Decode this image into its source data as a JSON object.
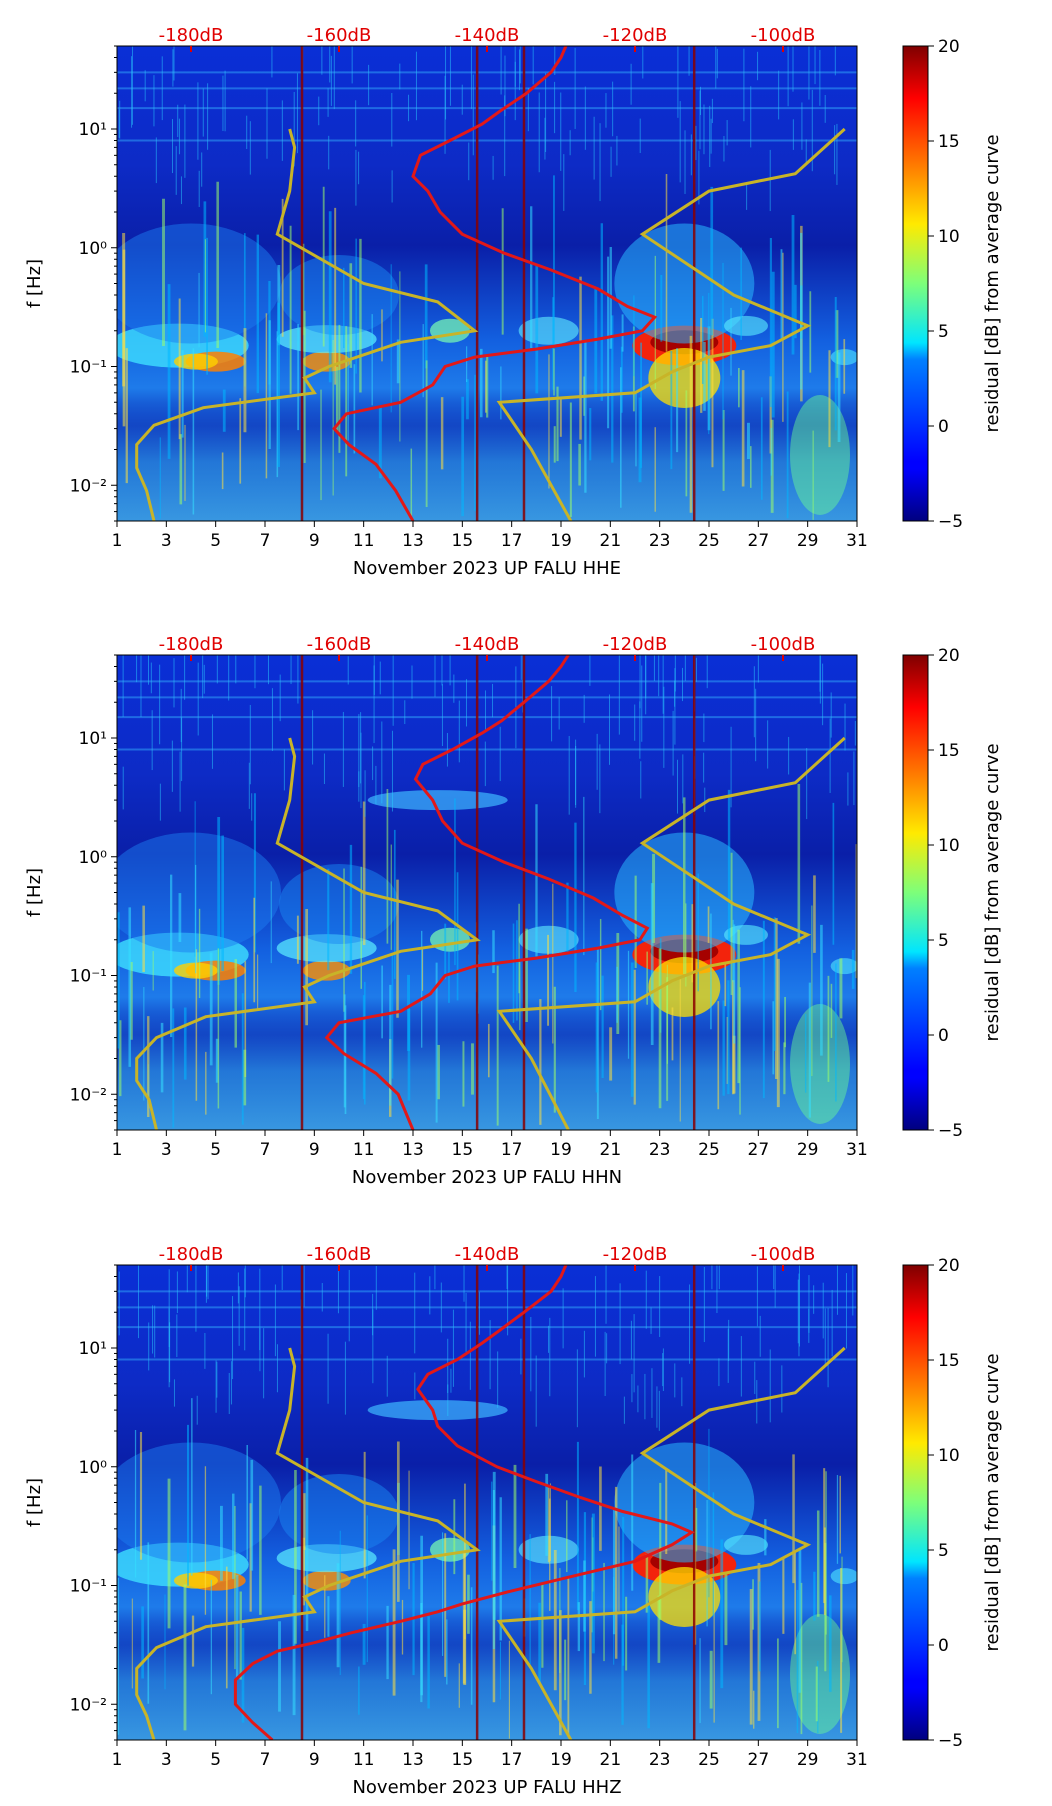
{
  "chart_data": [
    {
      "type": "heatmap",
      "channel": "HHE",
      "xlabel": "November 2023 UP FALU  HHE",
      "ylabel": "f [Hz]",
      "colorbar_label": "residual [dB] from average curve",
      "x_ticks": [
        "1",
        "3",
        "5",
        "7",
        "9",
        "11",
        "13",
        "15",
        "17",
        "19",
        "21",
        "23",
        "25",
        "27",
        "29",
        "31"
      ],
      "xlim": [
        1,
        31
      ],
      "ylim": [
        0.005,
        50
      ],
      "y_ticks": [
        "10⁻²",
        "10⁻¹",
        "10⁰",
        "10¹"
      ],
      "top_labels": [
        "-180dB",
        "-160dB",
        "-140dB",
        "-120dB",
        "-100dB"
      ],
      "colorbar_range": [
        -5,
        20
      ],
      "colorbar_ticks": [
        "20",
        "15",
        "10",
        "5",
        "0",
        "−5"
      ],
      "red_curve": [
        [
          13.0,
          0.005
        ],
        [
          12.3,
          0.009
        ],
        [
          11.5,
          0.015
        ],
        [
          10.4,
          0.022
        ],
        [
          9.8,
          0.03
        ],
        [
          10.3,
          0.04
        ],
        [
          12.5,
          0.05
        ],
        [
          13.8,
          0.07
        ],
        [
          14.3,
          0.1
        ],
        [
          15.5,
          0.12
        ],
        [
          18.0,
          0.14
        ],
        [
          20.5,
          0.17
        ],
        [
          22.3,
          0.2
        ],
        [
          22.8,
          0.26
        ],
        [
          21.7,
          0.32
        ],
        [
          20.5,
          0.45
        ],
        [
          18.6,
          0.65
        ],
        [
          16.7,
          0.9
        ],
        [
          15.0,
          1.3
        ],
        [
          14.1,
          2.0
        ],
        [
          13.6,
          3.0
        ],
        [
          13.0,
          4.0
        ],
        [
          13.3,
          6.0
        ],
        [
          14.5,
          8.0
        ],
        [
          15.8,
          11
        ],
        [
          16.5,
          14
        ],
        [
          17.6,
          20
        ],
        [
          18.6,
          30
        ],
        [
          19.0,
          40
        ],
        [
          19.2,
          50
        ]
      ],
      "yellow_curves": [
        [
          [
            2.5,
            0.005
          ],
          [
            2.2,
            0.009
          ],
          [
            1.8,
            0.014
          ],
          [
            1.8,
            0.022
          ],
          [
            2.5,
            0.032
          ],
          [
            4.5,
            0.045
          ],
          [
            9.0,
            0.06
          ],
          [
            8.6,
            0.08
          ],
          [
            9.6,
            0.1
          ],
          [
            12.5,
            0.16
          ],
          [
            15.5,
            0.2
          ],
          [
            14.0,
            0.35
          ],
          [
            11.0,
            0.5
          ],
          [
            7.5,
            1.3
          ],
          [
            8.0,
            3.0
          ],
          [
            8.2,
            7.0
          ],
          [
            8.0,
            10.0
          ]
        ],
        [
          [
            19.4,
            0.005
          ],
          [
            17.8,
            0.02
          ],
          [
            16.5,
            0.05
          ],
          [
            22.0,
            0.06
          ],
          [
            23.5,
            0.09
          ],
          [
            25.0,
            0.12
          ],
          [
            27.5,
            0.15
          ],
          [
            29.0,
            0.22
          ],
          [
            26.0,
            0.4
          ],
          [
            22.3,
            1.3
          ],
          [
            25.0,
            3.0
          ],
          [
            28.5,
            4.2
          ],
          [
            30.5,
            10.0
          ]
        ]
      ]
    },
    {
      "type": "heatmap",
      "channel": "HHN",
      "xlabel": "November 2023 UP FALU  HHN",
      "ylabel": "f [Hz]",
      "colorbar_label": "residual [dB] from average curve",
      "x_ticks": [
        "1",
        "3",
        "5",
        "7",
        "9",
        "11",
        "13",
        "15",
        "17",
        "19",
        "21",
        "23",
        "25",
        "27",
        "29",
        "31"
      ],
      "xlim": [
        1,
        31
      ],
      "ylim": [
        0.005,
        50
      ],
      "y_ticks": [
        "10⁻²",
        "10⁻¹",
        "10⁰",
        "10¹"
      ],
      "top_labels": [
        "-180dB",
        "-160dB",
        "-140dB",
        "-120dB",
        "-100dB"
      ],
      "colorbar_range": [
        -5,
        20
      ],
      "colorbar_ticks": [
        "20",
        "15",
        "10",
        "5",
        "0",
        "−5"
      ],
      "red_curve": [
        [
          13.0,
          0.005
        ],
        [
          12.4,
          0.01
        ],
        [
          11.5,
          0.015
        ],
        [
          10.2,
          0.022
        ],
        [
          9.5,
          0.03
        ],
        [
          10.0,
          0.04
        ],
        [
          12.5,
          0.05
        ],
        [
          13.7,
          0.07
        ],
        [
          14.3,
          0.1
        ],
        [
          15.5,
          0.12
        ],
        [
          18.0,
          0.14
        ],
        [
          20.5,
          0.17
        ],
        [
          22.2,
          0.2
        ],
        [
          22.5,
          0.25
        ],
        [
          21.5,
          0.32
        ],
        [
          20.3,
          0.45
        ],
        [
          18.5,
          0.65
        ],
        [
          16.7,
          0.9
        ],
        [
          15.0,
          1.3
        ],
        [
          14.2,
          2.0
        ],
        [
          13.8,
          3.0
        ],
        [
          13.1,
          4.5
        ],
        [
          13.4,
          6.0
        ],
        [
          14.6,
          8.0
        ],
        [
          15.8,
          11
        ],
        [
          16.6,
          14
        ],
        [
          17.5,
          20
        ],
        [
          18.5,
          30
        ],
        [
          19.0,
          40
        ],
        [
          19.3,
          50
        ]
      ],
      "yellow_curves": [
        [
          [
            2.6,
            0.005
          ],
          [
            2.3,
            0.009
          ],
          [
            1.8,
            0.013
          ],
          [
            1.8,
            0.02
          ],
          [
            2.6,
            0.03
          ],
          [
            4.6,
            0.045
          ],
          [
            9.0,
            0.06
          ],
          [
            8.6,
            0.08
          ],
          [
            9.6,
            0.1
          ],
          [
            12.5,
            0.16
          ],
          [
            15.6,
            0.2
          ],
          [
            14.0,
            0.35
          ],
          [
            11.0,
            0.5
          ],
          [
            7.5,
            1.3
          ],
          [
            8.0,
            3.0
          ],
          [
            8.2,
            7.0
          ],
          [
            8.0,
            10.0
          ]
        ],
        [
          [
            19.3,
            0.005
          ],
          [
            17.8,
            0.02
          ],
          [
            16.5,
            0.05
          ],
          [
            22.0,
            0.06
          ],
          [
            23.5,
            0.09
          ],
          [
            25.0,
            0.12
          ],
          [
            27.5,
            0.15
          ],
          [
            29.0,
            0.22
          ],
          [
            26.0,
            0.4
          ],
          [
            22.3,
            1.3
          ],
          [
            25.0,
            3.0
          ],
          [
            28.5,
            4.2
          ],
          [
            30.5,
            10.0
          ]
        ]
      ]
    },
    {
      "type": "heatmap",
      "channel": "HHZ",
      "xlabel": "November 2023 UP FALU  HHZ",
      "ylabel": "f [Hz]",
      "colorbar_label": "residual [dB] from average curve",
      "x_ticks": [
        "1",
        "3",
        "5",
        "7",
        "9",
        "11",
        "13",
        "15",
        "17",
        "19",
        "21",
        "23",
        "25",
        "27",
        "29",
        "31"
      ],
      "xlim": [
        1,
        31
      ],
      "ylim": [
        0.005,
        50
      ],
      "y_ticks": [
        "10⁻²",
        "10⁻¹",
        "10⁰",
        "10¹"
      ],
      "top_labels": [
        "-180dB",
        "-160dB",
        "-140dB",
        "-120dB",
        "-100dB"
      ],
      "colorbar_range": [
        -5,
        20
      ],
      "colorbar_ticks": [
        "20",
        "15",
        "10",
        "5",
        "0",
        "−5"
      ],
      "red_curve": [
        [
          7.3,
          0.005
        ],
        [
          6.5,
          0.007
        ],
        [
          5.8,
          0.01
        ],
        [
          5.8,
          0.016
        ],
        [
          6.5,
          0.022
        ],
        [
          7.5,
          0.028
        ],
        [
          9.0,
          0.033
        ],
        [
          10.5,
          0.04
        ],
        [
          12.5,
          0.05
        ],
        [
          14.0,
          0.06
        ],
        [
          15.0,
          0.07
        ],
        [
          17.0,
          0.09
        ],
        [
          19.5,
          0.12
        ],
        [
          22.0,
          0.16
        ],
        [
          23.5,
          0.22
        ],
        [
          24.3,
          0.28
        ],
        [
          23.5,
          0.33
        ],
        [
          21.5,
          0.42
        ],
        [
          19.8,
          0.55
        ],
        [
          18.0,
          0.75
        ],
        [
          16.4,
          1.0
        ],
        [
          14.8,
          1.5
        ],
        [
          14.0,
          2.2
        ],
        [
          13.8,
          3.0
        ],
        [
          13.2,
          4.5
        ],
        [
          13.6,
          6.0
        ],
        [
          14.8,
          8.0
        ],
        [
          15.8,
          11
        ],
        [
          16.5,
          14
        ],
        [
          17.5,
          20
        ],
        [
          18.6,
          30
        ],
        [
          19.0,
          40
        ],
        [
          19.2,
          50
        ]
      ],
      "yellow_curves": [
        [
          [
            2.5,
            0.005
          ],
          [
            2.2,
            0.008
          ],
          [
            1.8,
            0.012
          ],
          [
            1.8,
            0.02
          ],
          [
            2.6,
            0.03
          ],
          [
            4.6,
            0.045
          ],
          [
            9.0,
            0.06
          ],
          [
            8.6,
            0.08
          ],
          [
            9.6,
            0.1
          ],
          [
            12.5,
            0.16
          ],
          [
            15.6,
            0.2
          ],
          [
            14.0,
            0.35
          ],
          [
            11.0,
            0.5
          ],
          [
            7.5,
            1.3
          ],
          [
            8.0,
            3.0
          ],
          [
            8.2,
            7.0
          ],
          [
            8.0,
            10.0
          ]
        ],
        [
          [
            19.4,
            0.005
          ],
          [
            17.8,
            0.02
          ],
          [
            16.5,
            0.05
          ],
          [
            22.0,
            0.06
          ],
          [
            23.5,
            0.09
          ],
          [
            25.0,
            0.12
          ],
          [
            27.5,
            0.15
          ],
          [
            29.0,
            0.22
          ],
          [
            26.0,
            0.4
          ],
          [
            22.3,
            1.3
          ],
          [
            25.0,
            3.0
          ],
          [
            28.5,
            4.2
          ],
          [
            30.5,
            10.0
          ]
        ]
      ]
    }
  ]
}
